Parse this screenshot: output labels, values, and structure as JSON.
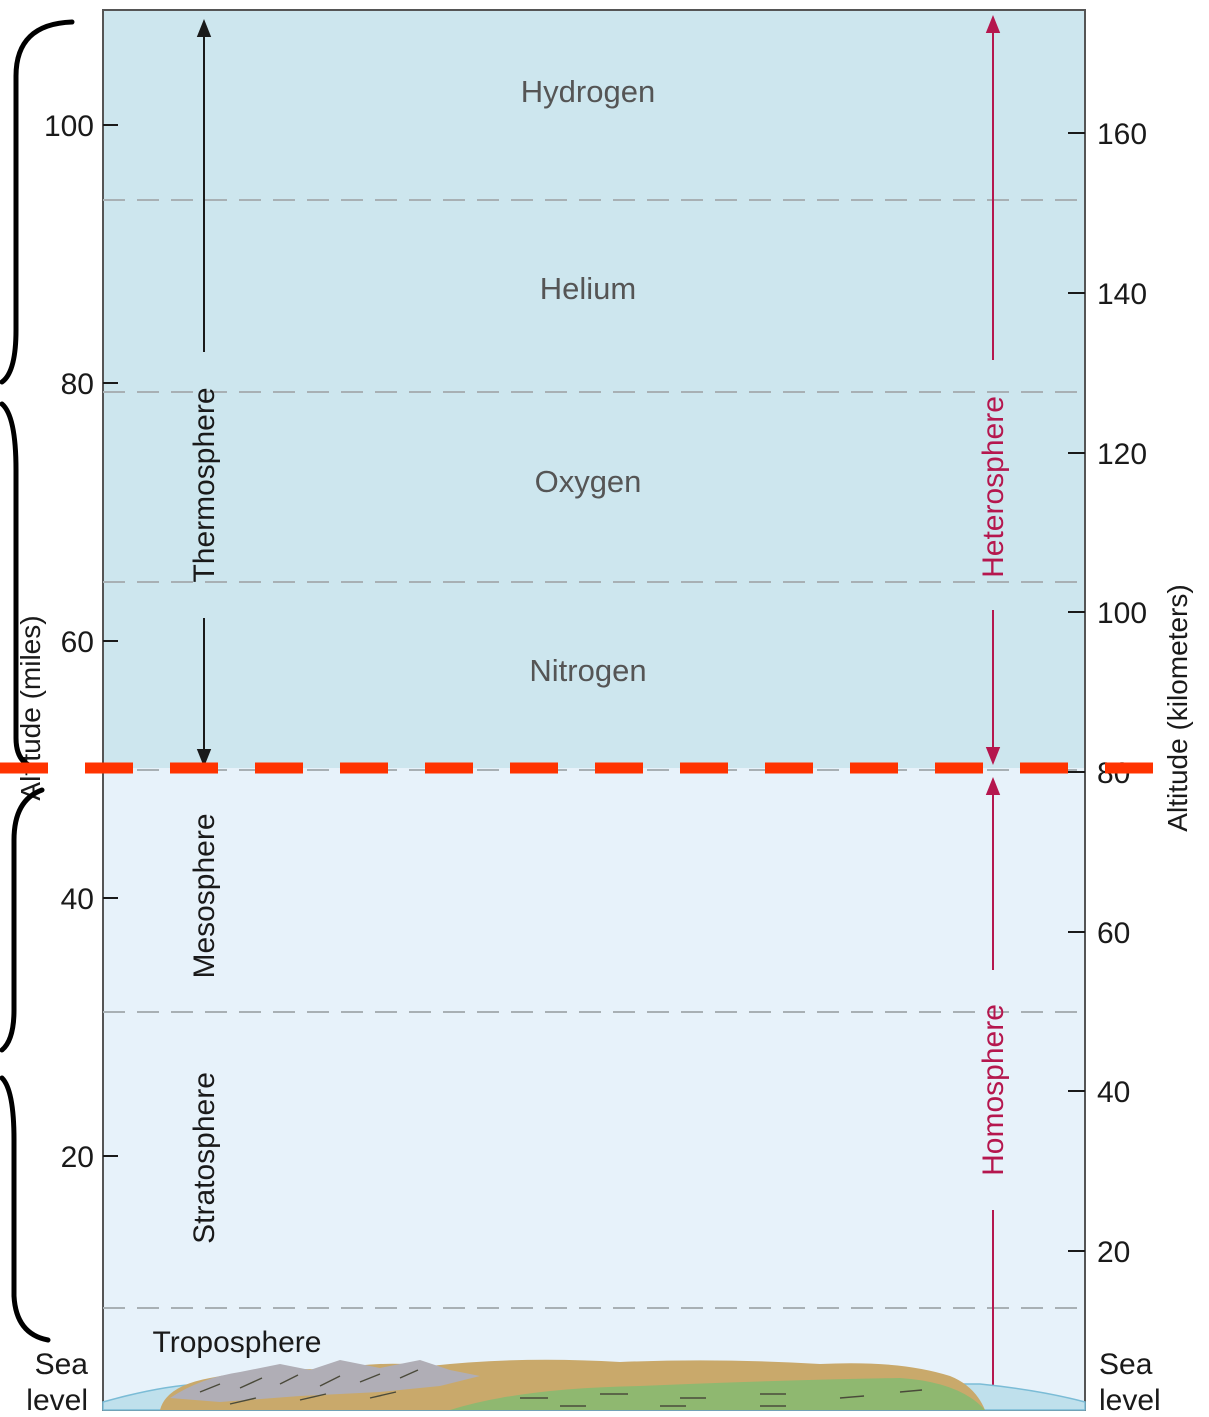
{
  "diagram": {
    "gases": [
      "Hydrogen",
      "Helium",
      "Oxygen",
      "Nitrogen"
    ],
    "layers": {
      "thermosphere": "Thermosphere",
      "mesosphere": "Mesosphere",
      "stratosphere": "Stratosphere",
      "troposphere": "Troposphere"
    },
    "spheres": {
      "heterosphere": "Heterosphere",
      "homosphere": "Homosphere"
    },
    "left_axis": {
      "title": "Altitude (miles)",
      "ticks": [
        "100",
        "80",
        "60",
        "40",
        "20"
      ],
      "sea_level": [
        "Sea",
        "level"
      ]
    },
    "right_axis": {
      "title": "Altitude (kilometers)",
      "ticks": [
        "160",
        "140",
        "120",
        "100",
        "80",
        "60",
        "40",
        "20"
      ],
      "sea_level": [
        "Sea",
        "level"
      ]
    },
    "colors": {
      "upper_region": "#cde6ee",
      "lower_region": "#e7f2fa",
      "sphere_arrow": "#b5174e",
      "marker_line": "#ff3300",
      "bracket": "#000000"
    }
  }
}
